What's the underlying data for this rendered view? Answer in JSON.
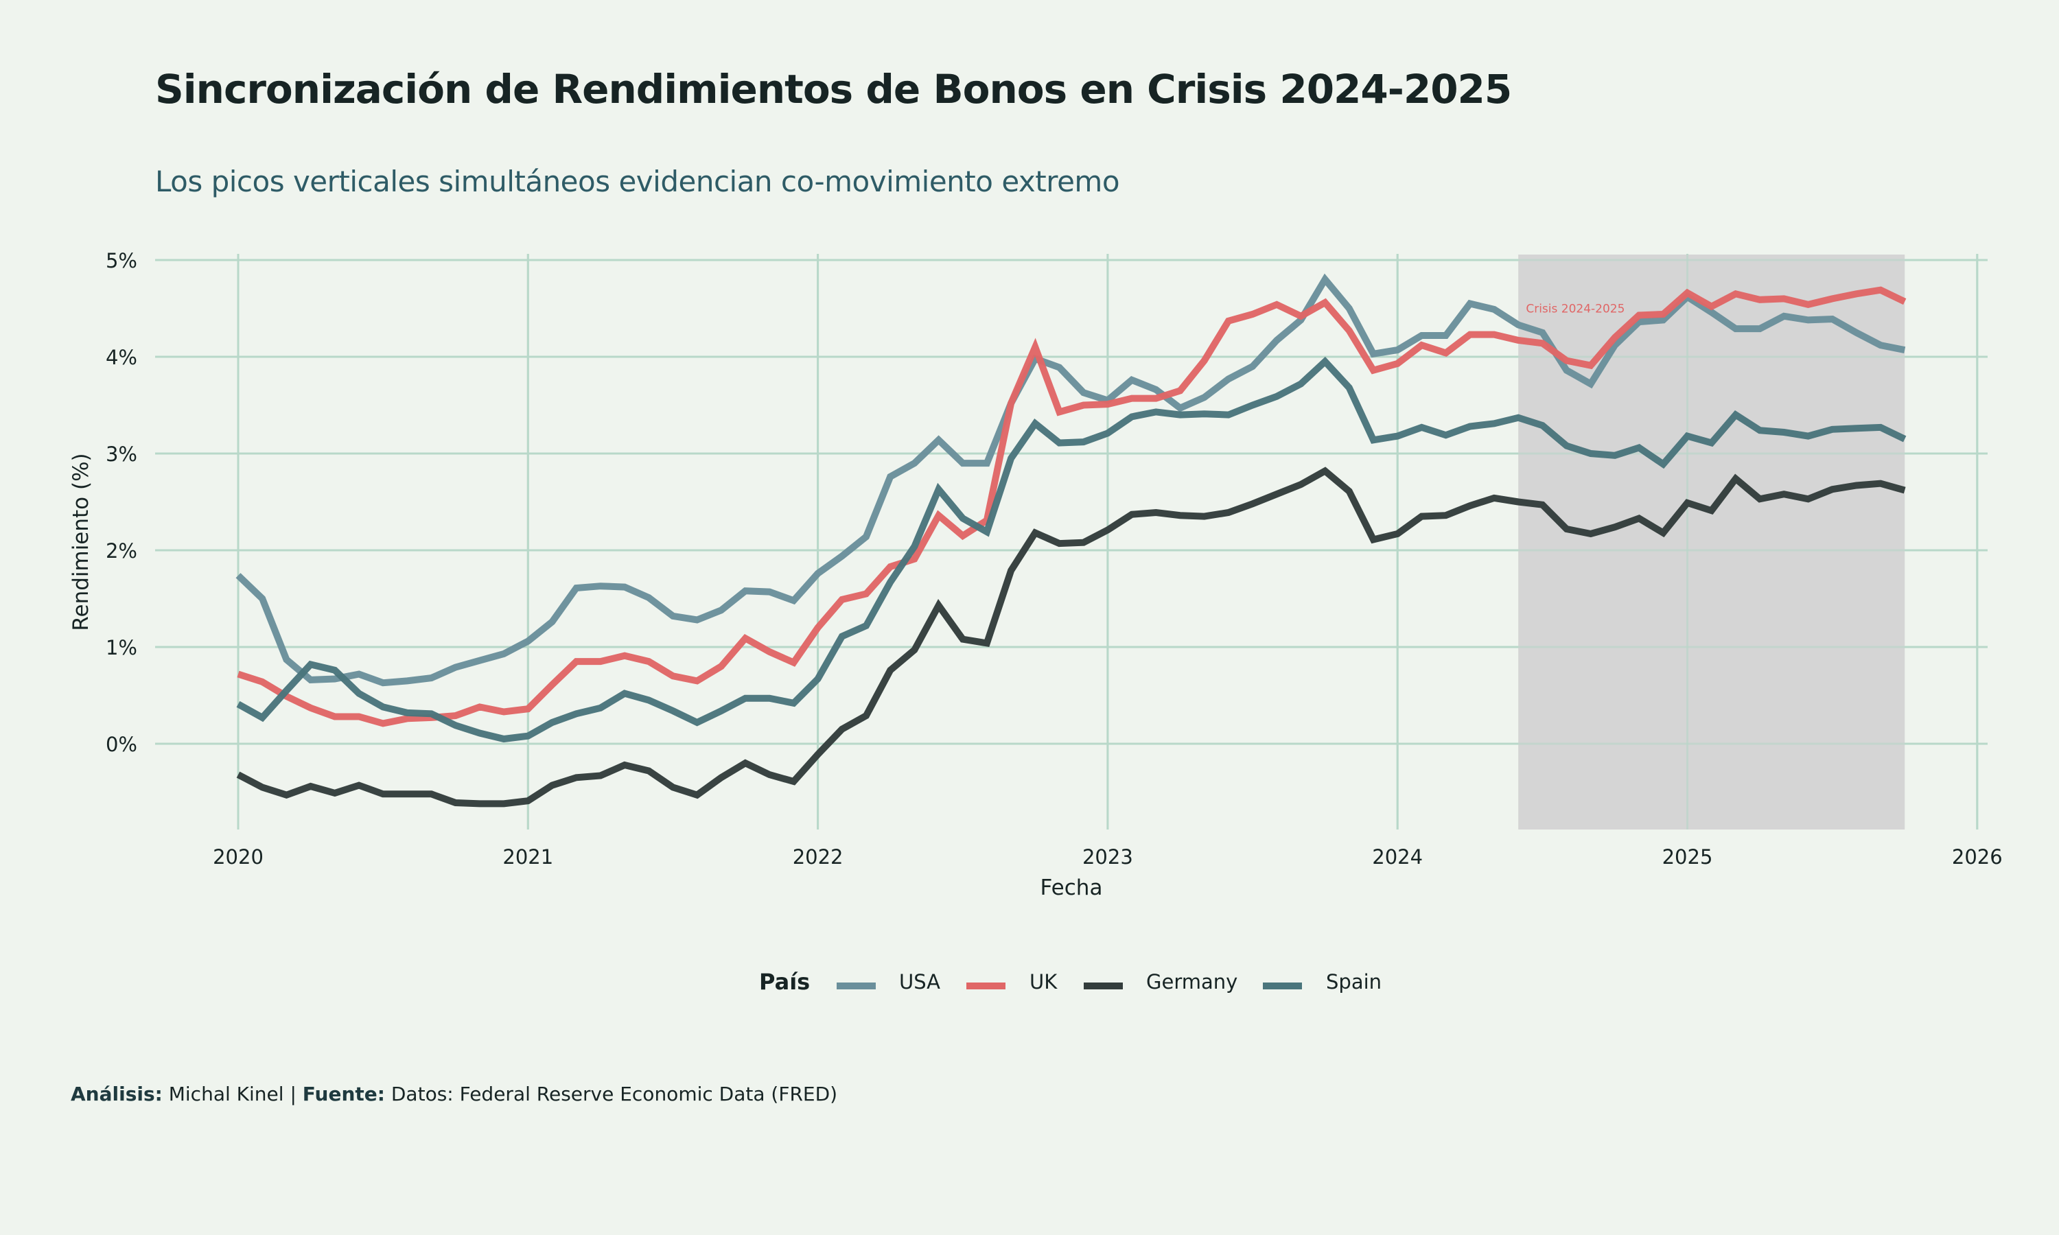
{
  "header": {
    "title": "Sincronización de Rendimientos de Bonos en Crisis 2024-2025",
    "subtitle": "Los picos verticales simultáneos evidencian co-movimiento extremo"
  },
  "legend": {
    "title": "País",
    "items": [
      {
        "label": "USA",
        "color": "#6a8f9b"
      },
      {
        "label": "UK",
        "color": "#e06666"
      },
      {
        "label": "Germany",
        "color": "#333d3c"
      },
      {
        "label": "Spain",
        "color": "#4a757c"
      }
    ]
  },
  "caption": {
    "analysis_label": "Análisis:",
    "analysis_value": "Michal Kinel",
    "separator": "|",
    "source_label": "Fuente:",
    "source_value": "Datos: Federal Reserve Economic Data (FRED)"
  },
  "chart_data": {
    "type": "line",
    "title": "Sincronización de Rendimientos de Bonos en Crisis 2024-2025",
    "subtitle": "Los picos verticales simultáneos evidencian co-movimiento extremo",
    "xlabel": "Fecha",
    "ylabel": "Rendimiento (%)",
    "x_start": "2020-01",
    "x_frequency": "monthly",
    "x_ticks": [
      "2020",
      "2021",
      "2022",
      "2023",
      "2024",
      "2025",
      "2026"
    ],
    "xlim": [
      2019.7,
      2026.05
    ],
    "y_ticks": [
      "0%",
      "1%",
      "2%",
      "3%",
      "4%",
      "5%"
    ],
    "y_tick_values": [
      0,
      1,
      2,
      3,
      4,
      5
    ],
    "ylim": [
      -0.9,
      5.06
    ],
    "grid": true,
    "legend_position": "bottom",
    "annotation": {
      "label": "Crisis 2024-2025",
      "shaded_range": [
        "2024-06",
        "2025-10"
      ],
      "shade_color": "#d3d3d3",
      "label_color": "#e06666",
      "label_x": "2024-07",
      "label_y": 4.5
    },
    "series": [
      {
        "name": "USA",
        "color": "#6a8f9b",
        "values": [
          1.74,
          1.5,
          0.87,
          0.66,
          0.67,
          0.72,
          0.63,
          0.65,
          0.68,
          0.79,
          0.86,
          0.93,
          1.06,
          1.26,
          1.61,
          1.63,
          1.62,
          1.51,
          1.32,
          1.28,
          1.38,
          1.58,
          1.57,
          1.48,
          1.76,
          1.94,
          2.14,
          2.76,
          2.9,
          3.14,
          2.9,
          2.9,
          3.52,
          3.98,
          3.89,
          3.63,
          3.55,
          3.76,
          3.66,
          3.47,
          3.58,
          3.77,
          3.9,
          4.17,
          4.38,
          4.8,
          4.5,
          4.03,
          4.07,
          4.22,
          4.22,
          4.55,
          4.49,
          4.33,
          4.25,
          3.86,
          3.72,
          4.12,
          4.36,
          4.38,
          4.62,
          4.46,
          4.29,
          4.29,
          4.42,
          4.38,
          4.39,
          4.25,
          4.12,
          4.07
        ]
      },
      {
        "name": "UK",
        "color": "#e06666",
        "values": [
          0.72,
          0.64,
          0.49,
          0.37,
          0.28,
          0.28,
          0.21,
          0.26,
          0.27,
          0.29,
          0.38,
          0.33,
          0.36,
          0.61,
          0.85,
          0.85,
          0.91,
          0.85,
          0.7,
          0.65,
          0.8,
          1.09,
          0.95,
          0.84,
          1.2,
          1.49,
          1.55,
          1.83,
          1.91,
          2.36,
          2.15,
          2.31,
          3.52,
          4.1,
          3.43,
          3.5,
          3.51,
          3.57,
          3.57,
          3.65,
          3.96,
          4.37,
          4.44,
          4.54,
          4.42,
          4.56,
          4.27,
          3.86,
          3.93,
          4.12,
          4.04,
          4.23,
          4.23,
          4.17,
          4.14,
          3.96,
          3.91,
          4.2,
          4.43,
          4.44,
          4.66,
          4.52,
          4.65,
          4.59,
          4.6,
          4.54,
          4.6,
          4.65,
          4.69,
          4.57
        ]
      },
      {
        "name": "Germany",
        "color": "#333d3c",
        "values": [
          -0.32,
          -0.45,
          -0.53,
          -0.44,
          -0.51,
          -0.43,
          -0.52,
          -0.52,
          -0.52,
          -0.61,
          -0.62,
          -0.62,
          -0.59,
          -0.43,
          -0.35,
          -0.33,
          -0.22,
          -0.28,
          -0.45,
          -0.53,
          -0.35,
          -0.2,
          -0.32,
          -0.39,
          -0.11,
          0.15,
          0.29,
          0.76,
          0.97,
          1.43,
          1.08,
          1.04,
          1.79,
          2.18,
          2.07,
          2.08,
          2.21,
          2.37,
          2.39,
          2.36,
          2.35,
          2.39,
          2.48,
          2.58,
          2.68,
          2.82,
          2.61,
          2.11,
          2.17,
          2.35,
          2.36,
          2.46,
          2.54,
          2.5,
          2.47,
          2.22,
          2.17,
          2.24,
          2.33,
          2.18,
          2.49,
          2.41,
          2.74,
          2.53,
          2.58,
          2.53,
          2.63,
          2.67,
          2.69,
          2.62
        ]
      },
      {
        "name": "Spain",
        "color": "#4a757c",
        "values": [
          0.41,
          0.27,
          0.55,
          0.82,
          0.76,
          0.52,
          0.38,
          0.32,
          0.31,
          0.19,
          0.11,
          0.05,
          0.08,
          0.22,
          0.31,
          0.37,
          0.52,
          0.45,
          0.34,
          0.22,
          0.34,
          0.47,
          0.47,
          0.42,
          0.67,
          1.11,
          1.22,
          1.67,
          2.04,
          2.63,
          2.33,
          2.19,
          2.95,
          3.31,
          3.11,
          3.12,
          3.21,
          3.38,
          3.43,
          3.4,
          3.41,
          3.4,
          3.5,
          3.59,
          3.72,
          3.95,
          3.68,
          3.14,
          3.18,
          3.27,
          3.19,
          3.28,
          3.31,
          3.37,
          3.29,
          3.08,
          3.0,
          2.98,
          3.06,
          2.89,
          3.18,
          3.11,
          3.4,
          3.24,
          3.22,
          3.18,
          3.25,
          3.26,
          3.27,
          3.15
        ]
      }
    ]
  }
}
